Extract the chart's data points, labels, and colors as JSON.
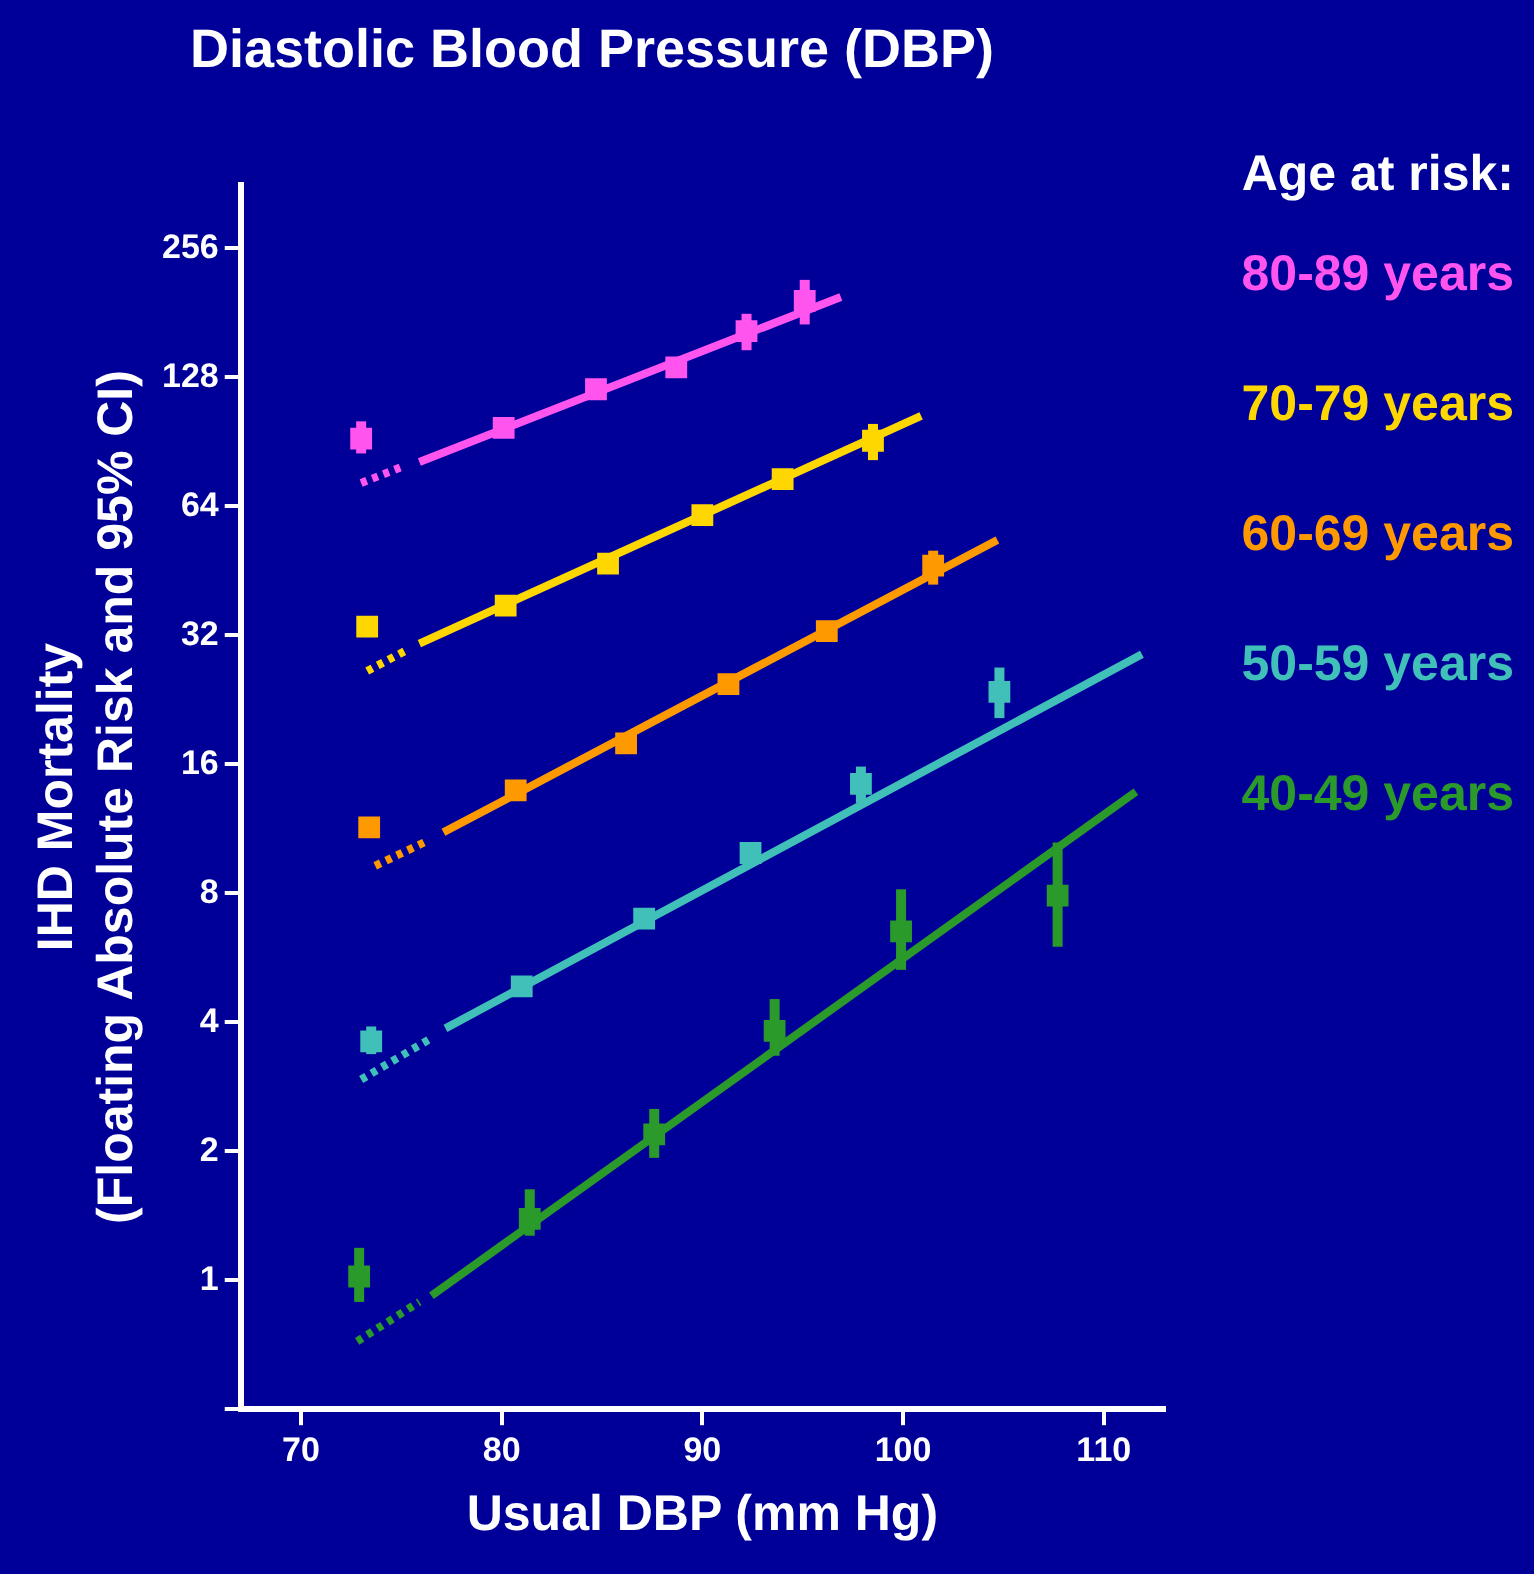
{
  "chart_data": {
    "type": "scatter",
    "title": "Diastolic Blood Pressure (DBP)",
    "xlabel": "Usual DBP (mm Hg)",
    "ylabel": "IHD Mortality\n(Floating Absolute Risk and 95% CI)",
    "legend_title": "Age at risk:",
    "legend": "right",
    "log": "y",
    "grid": false,
    "xlim": [
      67,
      113
    ],
    "xticks": [
      70,
      80,
      90,
      100,
      110
    ],
    "ylim": [
      0.5,
      360
    ],
    "yticks": [
      {
        "value": 0.5,
        "label": null
      },
      1,
      2,
      4,
      8,
      16,
      32,
      64,
      128,
      256
    ],
    "series": [
      {
        "name": "80-89 years",
        "marker": "square",
        "color": "#ff55ee",
        "x": [
          73.0,
          80.1,
          84.7,
          88.7,
          92.2,
          95.1
        ],
        "values": [
          92,
          97.5,
          120,
          135,
          164,
          193
        ],
        "errors": [
          [
            85,
            101
          ],
          null,
          null,
          null,
          [
            148,
            180
          ],
          [
            170,
            216
          ]
        ]
      },
      {
        "type": "line",
        "marker": "none",
        "line_style": "dotted",
        "color": "#ff55ee",
        "x": [
          73.0,
          75.1
        ],
        "values": [
          72.5,
          79.3
        ]
      },
      {
        "type": "line",
        "marker": "none",
        "line_style": "solid",
        "color": "#ff55ee",
        "x": [
          75.9,
          96.9
        ],
        "values": [
          81.2,
          197
        ]
      },
      {
        "name": "70-79 years",
        "marker": "square",
        "color": "#ffd700",
        "x": [
          73.3,
          80.2,
          85.3,
          90.0,
          94.0,
          98.5
        ],
        "values": [
          33.5,
          37.5,
          47,
          61,
          74,
          91
        ],
        "errors": [
          null,
          null,
          null,
          null,
          null,
          [
            82,
            99.6
          ]
        ]
      },
      {
        "type": "line",
        "marker": "none",
        "line_style": "dotted",
        "color": "#ffd700",
        "x": [
          73.3,
          75.3
        ],
        "values": [
          26.4,
          29.6
        ]
      },
      {
        "type": "line",
        "marker": "none",
        "line_style": "solid",
        "color": "#ffd700",
        "x": [
          75.9,
          100.9
        ],
        "values": [
          30.6,
          104
        ]
      },
      {
        "name": "60-69 years",
        "marker": "square",
        "color": "#ff9900",
        "x": [
          73.4,
          80.7,
          86.2,
          91.3,
          96.2,
          101.5
        ],
        "values": [
          11.4,
          13.9,
          17.9,
          24.6,
          32.7,
          46.5
        ],
        "errors": [
          null,
          null,
          null,
          null,
          null,
          [
            42,
            50.4
          ]
        ]
      },
      {
        "type": "line",
        "marker": "none",
        "line_style": "dotted",
        "color": "#ff9900",
        "x": [
          73.7,
          76.3
        ],
        "values": [
          9.27,
          10.6
        ]
      },
      {
        "type": "line",
        "marker": "none",
        "line_style": "solid",
        "color": "#ff9900",
        "x": [
          77.1,
          104.7
        ],
        "values": [
          11.1,
          53.4
        ]
      },
      {
        "name": "50-59 years",
        "marker": "square",
        "color": "#40c0b8",
        "x": [
          73.5,
          81.0,
          87.1,
          92.4,
          97.9,
          104.8
        ],
        "values": [
          3.61,
          4.85,
          6.98,
          9.93,
          14.4,
          23.6
        ],
        "errors": [
          [
            3.37,
            3.91
          ],
          null,
          null,
          null,
          [
            13.0,
            15.8
          ],
          [
            20.5,
            26.9
          ]
        ]
      },
      {
        "type": "line",
        "marker": "none",
        "line_style": "dotted",
        "color": "#40c0b8",
        "x": [
          73.0,
          76.4
        ],
        "values": [
          2.94,
          3.65
        ]
      },
      {
        "type": "line",
        "marker": "none",
        "line_style": "solid",
        "color": "#40c0b8",
        "x": [
          77.2,
          111.9
        ],
        "values": [
          3.87,
          28.9
        ]
      },
      {
        "name": "40-49 years",
        "marker": "square",
        "color": "#2a9a2a",
        "x": [
          72.9,
          81.4,
          87.6,
          93.6,
          99.9,
          107.7
        ],
        "values": [
          1.02,
          1.39,
          2.19,
          3.82,
          6.52,
          7.9
        ],
        "errors": [
          [
            0.89,
            1.19
          ],
          [
            1.27,
            1.63
          ],
          [
            1.93,
            2.51
          ],
          [
            3.34,
            4.53
          ],
          [
            5.3,
            8.17
          ],
          [
            6.0,
            10.5
          ]
        ]
      },
      {
        "type": "line",
        "marker": "none",
        "line_style": "dotted",
        "color": "#2a9a2a",
        "x": [
          72.8,
          75.9
        ],
        "values": [
          0.72,
          0.89
        ]
      },
      {
        "type": "line",
        "marker": "none",
        "line_style": "solid",
        "color": "#2a9a2a",
        "x": [
          76.5,
          111.6
        ],
        "values": [
          0.92,
          13.8
        ]
      }
    ]
  }
}
